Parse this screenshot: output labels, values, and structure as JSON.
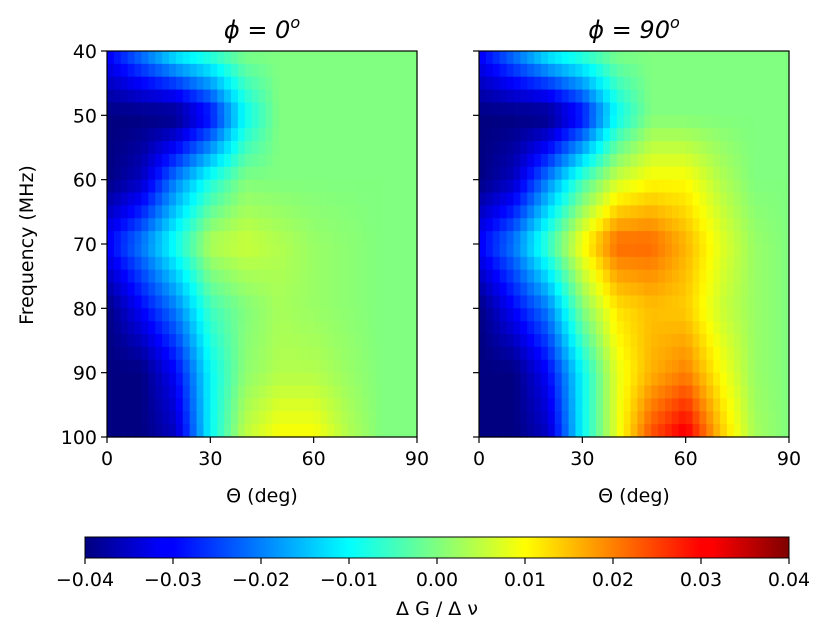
{
  "chart_data": [
    {
      "type": "heatmap",
      "title": "ϕ = 0",
      "title_superscript": "o",
      "xlabel": "Θ (deg)",
      "ylabel": "Frequency (MHz)",
      "xlim": [
        0,
        90
      ],
      "ylim": [
        40,
        100
      ],
      "x_ticks": [
        "0",
        "30",
        "60",
        "90"
      ],
      "y_ticks": [
        "40",
        "50",
        "60",
        "70",
        "80",
        "90",
        "100"
      ],
      "y_axis_inverted": true,
      "grid": false,
      "x": [
        0,
        10,
        20,
        30,
        40,
        50,
        60,
        70,
        80,
        90
      ],
      "y": [
        40,
        50,
        60,
        70,
        80,
        90,
        100
      ],
      "z": [
        [
          -0.03,
          -0.02,
          -0.01,
          -0.005,
          0.0,
          0.0,
          0.0,
          0.0,
          0.0,
          0.0
        ],
        [
          -0.04,
          -0.04,
          -0.04,
          -0.03,
          -0.01,
          0.0,
          0.0,
          0.0,
          0.0,
          0.0
        ],
        [
          -0.04,
          -0.035,
          -0.02,
          -0.008,
          0.0,
          0.0,
          0.0,
          0.0,
          0.0,
          0.0
        ],
        [
          -0.03,
          -0.02,
          -0.008,
          0.004,
          0.006,
          0.004,
          0.002,
          0.001,
          0.0,
          0.0
        ],
        [
          -0.04,
          -0.03,
          -0.02,
          -0.005,
          0.0,
          0.003,
          0.002,
          0.001,
          0.0,
          0.0
        ],
        [
          -0.04,
          -0.04,
          -0.03,
          -0.01,
          0.001,
          0.004,
          0.004,
          0.002,
          0.0,
          0.0
        ],
        [
          -0.04,
          -0.04,
          -0.035,
          -0.01,
          0.005,
          0.01,
          0.01,
          0.004,
          0.0,
          0.0
        ]
      ]
    },
    {
      "type": "heatmap",
      "title": "ϕ = 90",
      "title_superscript": "o",
      "xlabel": "Θ (deg)",
      "ylabel": "",
      "xlim": [
        0,
        90
      ],
      "ylim": [
        40,
        100
      ],
      "x_ticks": [
        "0",
        "30",
        "60",
        "90"
      ],
      "y_ticks": [
        "40",
        "50",
        "60",
        "70",
        "80",
        "90",
        "100"
      ],
      "y_axis_inverted": true,
      "grid": false,
      "x": [
        0,
        10,
        20,
        30,
        40,
        50,
        60,
        70,
        80,
        90
      ],
      "y": [
        40,
        50,
        60,
        70,
        80,
        90,
        100
      ],
      "z": [
        [
          -0.03,
          -0.02,
          -0.01,
          -0.005,
          0.0,
          0.0,
          0.0,
          0.0,
          0.0,
          0.0
        ],
        [
          -0.04,
          -0.04,
          -0.04,
          -0.03,
          -0.01,
          0.0,
          0.0,
          0.0,
          0.0,
          0.0
        ],
        [
          -0.04,
          -0.035,
          -0.02,
          -0.005,
          0.006,
          0.01,
          0.01,
          0.004,
          0.0,
          0.0
        ],
        [
          -0.03,
          -0.02,
          -0.005,
          0.01,
          0.022,
          0.022,
          0.016,
          0.008,
          0.002,
          0.0
        ],
        [
          -0.04,
          -0.03,
          -0.02,
          0.0,
          0.012,
          0.015,
          0.014,
          0.006,
          0.002,
          0.0
        ],
        [
          -0.04,
          -0.04,
          -0.03,
          -0.01,
          0.008,
          0.016,
          0.02,
          0.01,
          0.002,
          0.0
        ],
        [
          -0.04,
          -0.04,
          -0.035,
          -0.01,
          0.008,
          0.024,
          0.032,
          0.015,
          0.003,
          0.0
        ]
      ]
    }
  ],
  "colorbar": {
    "label": "Δ G / Δ ν",
    "colormap": "jet",
    "vmin": -0.04,
    "vmax": 0.04,
    "ticks": [
      {
        "value": -0.04,
        "label": "−0.04"
      },
      {
        "value": -0.03,
        "label": "−0.03"
      },
      {
        "value": -0.02,
        "label": "−0.02"
      },
      {
        "value": -0.01,
        "label": "−0.01"
      },
      {
        "value": 0.0,
        "label": "0.00"
      },
      {
        "value": 0.01,
        "label": "0.01"
      },
      {
        "value": 0.02,
        "label": "0.02"
      },
      {
        "value": 0.03,
        "label": "0.03"
      },
      {
        "value": 0.04,
        "label": "0.04"
      }
    ]
  }
}
